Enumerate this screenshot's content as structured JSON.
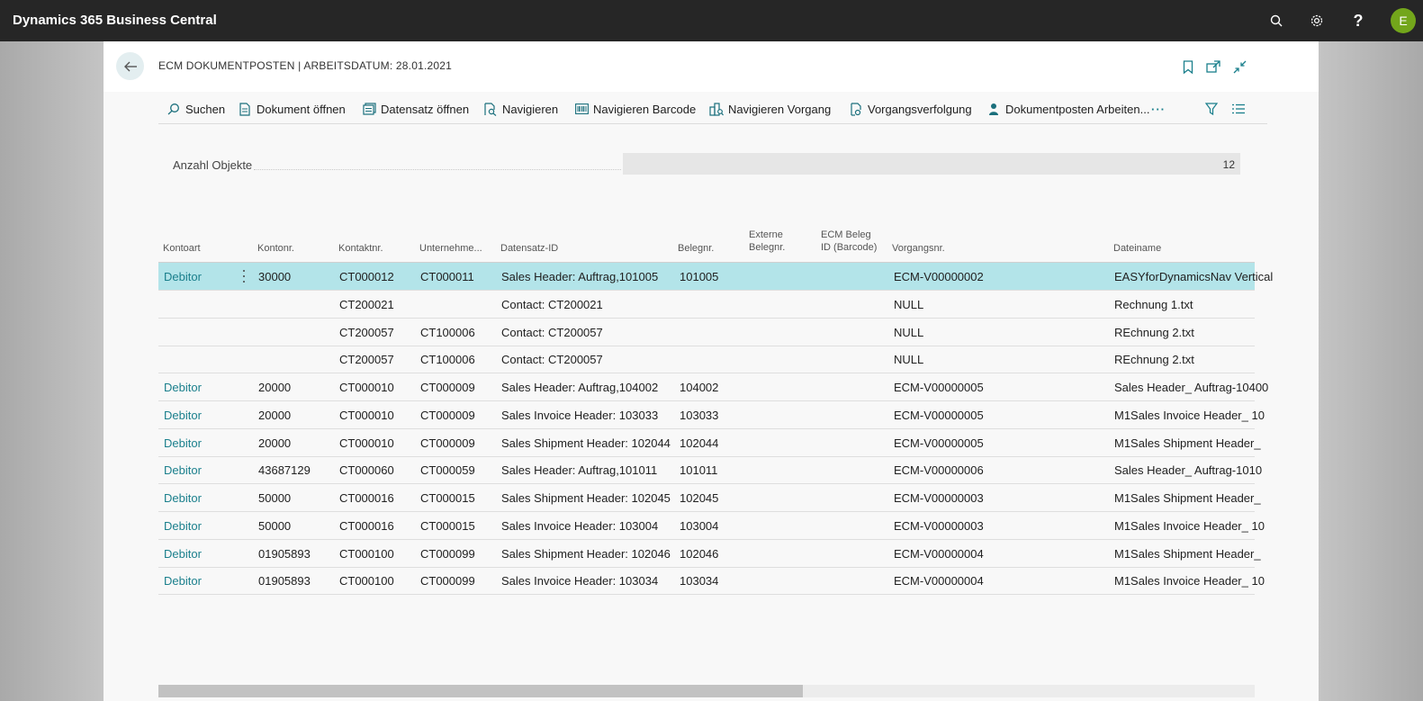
{
  "app": {
    "title": "Dynamics 365 Business Central",
    "user_initial": "E"
  },
  "topbar_icons": [
    "search-icon",
    "settings-icon",
    "help-icon"
  ],
  "page": {
    "title": "ECM DOKUMENTPOSTEN | ARBEITSDATUM: 28.01.2021"
  },
  "actions": [
    {
      "label": "Suchen",
      "icon": "search-icon"
    },
    {
      "label": "Dokument öffnen",
      "icon": "document-icon"
    },
    {
      "label": "Datensatz öffnen",
      "icon": "record-icon"
    },
    {
      "label": "Navigieren",
      "icon": "navigate-icon"
    },
    {
      "label": "Navigieren Barcode",
      "icon": "barcode-icon"
    },
    {
      "label": "Navigieren Vorgang",
      "icon": "navigate-process-icon"
    },
    {
      "label": "Vorgangsverfolgung",
      "icon": "tracking-icon"
    },
    {
      "label": "Dokumentposten Arbeiten...",
      "icon": "user-icon"
    }
  ],
  "summary": {
    "label": "Anzahl Objekte",
    "value": "12"
  },
  "columns": {
    "kontoart": "Kontoart",
    "kontonr": "Kontonr.",
    "kontaktnr": "Kontaktnr.",
    "unternehmen": "Unternehme...",
    "datensatz": "Datensatz-ID",
    "belegnr": "Belegnr.",
    "extern_1": "Externe",
    "extern_2": "Belegnr.",
    "ecm_1": "ECM Beleg",
    "ecm_2": "ID (Barcode)",
    "vorgang": "Vorgangsnr.",
    "datei": "Dateiname"
  },
  "rows": [
    {
      "kontoart": "Debitor",
      "kontonr": "30000",
      "kontaktnr": "CT000012",
      "unternehmen": "CT000011",
      "datensatz": "Sales Header: Auftrag,101005",
      "belegnr": "101005",
      "vorgang": "ECM-V00000002",
      "datei": "EASYforDynamicsNav Vertical"
    },
    {
      "kontoart": "",
      "kontonr": "",
      "kontaktnr": "CT200021",
      "unternehmen": "",
      "datensatz": "Contact: CT200021",
      "belegnr": "",
      "vorgang": "NULL",
      "datei": "Rechnung 1.txt"
    },
    {
      "kontoart": "",
      "kontonr": "",
      "kontaktnr": "CT200057",
      "unternehmen": "CT100006",
      "datensatz": "Contact: CT200057",
      "belegnr": "",
      "vorgang": "NULL",
      "datei": "REchnung 2.txt"
    },
    {
      "kontoart": "",
      "kontonr": "",
      "kontaktnr": "CT200057",
      "unternehmen": "CT100006",
      "datensatz": "Contact: CT200057",
      "belegnr": "",
      "vorgang": "NULL",
      "datei": "REchnung 2.txt"
    },
    {
      "kontoart": "Debitor",
      "kontonr": "20000",
      "kontaktnr": "CT000010",
      "unternehmen": "CT000009",
      "datensatz": "Sales Header: Auftrag,104002",
      "belegnr": "104002",
      "vorgang": "ECM-V00000005",
      "datei": "Sales Header_ Auftrag-10400"
    },
    {
      "kontoart": "Debitor",
      "kontonr": "20000",
      "kontaktnr": "CT000010",
      "unternehmen": "CT000009",
      "datensatz": "Sales Invoice Header: 103033",
      "belegnr": "103033",
      "vorgang": "ECM-V00000005",
      "datei": "M1Sales Invoice Header_ 10"
    },
    {
      "kontoart": "Debitor",
      "kontonr": "20000",
      "kontaktnr": "CT000010",
      "unternehmen": "CT000009",
      "datensatz": "Sales Shipment Header: 102044",
      "belegnr": "102044",
      "vorgang": "ECM-V00000005",
      "datei": "M1Sales Shipment Header_"
    },
    {
      "kontoart": "Debitor",
      "kontonr": "43687129",
      "kontaktnr": "CT000060",
      "unternehmen": "CT000059",
      "datensatz": "Sales Header: Auftrag,101011",
      "belegnr": "101011",
      "vorgang": "ECM-V00000006",
      "datei": "Sales Header_ Auftrag-1010"
    },
    {
      "kontoart": "Debitor",
      "kontonr": "50000",
      "kontaktnr": "CT000016",
      "unternehmen": "CT000015",
      "datensatz": "Sales Shipment Header: 102045",
      "belegnr": "102045",
      "vorgang": "ECM-V00000003",
      "datei": "M1Sales Shipment Header_"
    },
    {
      "kontoart": "Debitor",
      "kontonr": "50000",
      "kontaktnr": "CT000016",
      "unternehmen": "CT000015",
      "datensatz": "Sales Invoice Header: 103004",
      "belegnr": "103004",
      "vorgang": "ECM-V00000003",
      "datei": "M1Sales Invoice Header_ 10"
    },
    {
      "kontoart": "Debitor",
      "kontonr": "01905893",
      "kontaktnr": "CT000100",
      "unternehmen": "CT000099",
      "datensatz": "Sales Shipment Header: 102046",
      "belegnr": "102046",
      "vorgang": "ECM-V00000004",
      "datei": "M1Sales Shipment Header_"
    },
    {
      "kontoart": "Debitor",
      "kontonr": "01905893",
      "kontaktnr": "CT000100",
      "unternehmen": "CT000099",
      "datensatz": "Sales Invoice Header: 103034",
      "belegnr": "103034",
      "vorgang": "ECM-V00000004",
      "datei": "M1Sales Invoice Header_ 10"
    }
  ],
  "colors": {
    "accent": "#1a7f8c",
    "selected_row": "#b3e4e9",
    "topbar": "#262626",
    "avatar": "#73a61b"
  }
}
